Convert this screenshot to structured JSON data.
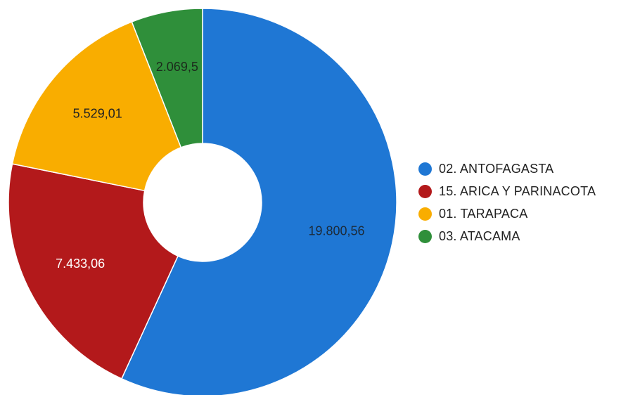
{
  "chart_data": {
    "type": "pie",
    "variant": "donut",
    "categories": [
      "02. ANTOFAGASTA",
      "15. ARICA Y PARINACOTA",
      "01. TARAPACA",
      "03. ATACAMA"
    ],
    "values": [
      19800.56,
      7433.06,
      5529.01,
      2069.5
    ],
    "value_labels": [
      "19.800,56",
      "7.433,06",
      "5.529,01",
      "2.069,5"
    ],
    "colors": [
      "#1f77d4",
      "#b3191b",
      "#f9ad00",
      "#2f8f3a"
    ],
    "label_colors": [
      "#1c2b3a",
      "#ffffff",
      "#222222",
      "#1c2b1c"
    ],
    "legend_position": "right",
    "title": ""
  }
}
